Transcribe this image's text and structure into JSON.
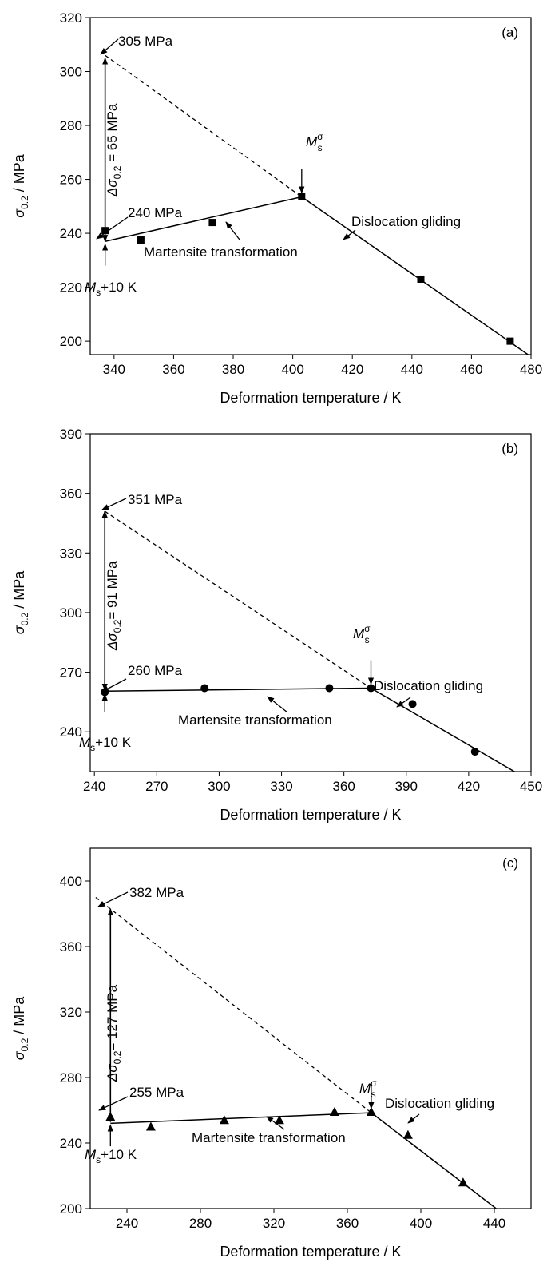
{
  "chart_data": [
    {
      "type": "scatter",
      "panel_label": "(a)",
      "xlabel": "Deformation temperature / K",
      "ylabel": {
        "base": "σ",
        "sub": "0.2",
        "rest": " / MPa"
      },
      "xlim": [
        332,
        480
      ],
      "ylim": [
        195,
        320
      ],
      "xticks": [
        340,
        360,
        380,
        400,
        420,
        440,
        460,
        480
      ],
      "yticks": [
        200,
        220,
        240,
        260,
        280,
        300,
        320
      ],
      "marker": "square",
      "points": [
        {
          "x": 337,
          "y": 241
        },
        {
          "x": 349,
          "y": 237.5
        },
        {
          "x": 373,
          "y": 244
        },
        {
          "x": 403,
          "y": 253.5
        },
        {
          "x": 443,
          "y": 223
        },
        {
          "x": 473,
          "y": 200
        }
      ],
      "martensite_line": [
        [
          337,
          237
        ],
        [
          403,
          253.5
        ]
      ],
      "dislocation_line": [
        [
          403,
          253.5
        ],
        [
          479,
          195
        ]
      ],
      "dashed_line": [
        [
          337,
          306
        ],
        [
          403,
          253.5
        ]
      ],
      "vertical_arrow": {
        "x": 337,
        "y_from": 237,
        "y_to": 305
      },
      "ms10_arrow": {
        "x": 337,
        "y_from": 228,
        "y_to": 236
      },
      "ms_sigma_arrow": {
        "x": 403,
        "y_from": 264,
        "y_to": 255
      },
      "annotations": {
        "top_value": "305 MPa",
        "low_value": "240 MPa",
        "delta": {
          "prefix": "Δσ",
          "sub": "0.2",
          "rest": " = 65 MPa"
        },
        "ms10": {
          "base": "M",
          "sub": "s",
          "rest": "+10 K"
        },
        "ms_sigma": {
          "base": "M",
          "sub": "s",
          "sup": "σ"
        },
        "martensite": "Martensite transformation",
        "dislocation": "Dislocation gliding"
      }
    },
    {
      "type": "scatter",
      "panel_label": "(b)",
      "xlabel": "Deformation temperature / K",
      "ylabel": {
        "base": "σ",
        "sub": "0.2",
        "rest": " / MPa"
      },
      "xlim": [
        238,
        450
      ],
      "ylim": [
        220,
        390
      ],
      "xticks": [
        240,
        270,
        300,
        330,
        360,
        390,
        420,
        450
      ],
      "yticks": [
        240,
        270,
        300,
        330,
        360,
        390
      ],
      "marker": "circle",
      "points": [
        {
          "x": 245,
          "y": 260
        },
        {
          "x": 293,
          "y": 262
        },
        {
          "x": 353,
          "y": 262
        },
        {
          "x": 373,
          "y": 262
        },
        {
          "x": 393,
          "y": 254
        },
        {
          "x": 423,
          "y": 230
        }
      ],
      "martensite_line": [
        [
          245,
          260.5
        ],
        [
          373,
          262
        ]
      ],
      "dislocation_line": [
        [
          373,
          262
        ],
        [
          442,
          220
        ]
      ],
      "dashed_line": [
        [
          245,
          351
        ],
        [
          373,
          262
        ]
      ],
      "vertical_arrow": {
        "x": 245,
        "y_from": 261,
        "y_to": 351
      },
      "ms10_arrow": {
        "x": 245,
        "y_from": 250,
        "y_to": 259
      },
      "ms_sigma_arrow": {
        "x": 373,
        "y_from": 276,
        "y_to": 264
      },
      "annotations": {
        "top_value": "351 MPa",
        "low_value": "260 MPa",
        "delta": {
          "prefix": "Δσ",
          "sub": "0.2",
          "rest": "= 91 MPa"
        },
        "ms10": {
          "base": "M",
          "sub": "s",
          "rest": "+10 K"
        },
        "ms_sigma": {
          "base": "M",
          "sub": "s",
          "sup": "σ"
        },
        "martensite": "Martensite transformation",
        "dislocation": "Dislocation gliding"
      }
    },
    {
      "type": "scatter",
      "panel_label": "(c)",
      "xlabel": "Deformation temperature / K",
      "ylabel": {
        "base": "σ",
        "sub": "0.2",
        "rest": " / MPa"
      },
      "xlim": [
        220,
        460
      ],
      "ylim": [
        200,
        420
      ],
      "xticks": [
        240,
        280,
        320,
        360,
        400,
        440
      ],
      "yticks": [
        200,
        240,
        280,
        320,
        360,
        400
      ],
      "marker": "triangle",
      "points": [
        {
          "x": 231,
          "y": 256
        },
        {
          "x": 253,
          "y": 250
        },
        {
          "x": 293,
          "y": 254
        },
        {
          "x": 323,
          "y": 254
        },
        {
          "x": 353,
          "y": 259
        },
        {
          "x": 373,
          "y": 259
        },
        {
          "x": 393,
          "y": 245
        },
        {
          "x": 423,
          "y": 216
        }
      ],
      "martensite_line": [
        [
          231,
          252
        ],
        [
          373,
          258.5
        ]
      ],
      "dislocation_line": [
        [
          373,
          258.5
        ],
        [
          441,
          200
        ]
      ],
      "dashed_line": [
        [
          223,
          390
        ],
        [
          373,
          258.5
        ]
      ],
      "vertical_arrow": {
        "x": 231,
        "y_from": 253,
        "y_to": 383
      },
      "ms10_arrow": {
        "x": 231,
        "y_from": 238,
        "y_to": 251
      },
      "ms_sigma_arrow": {
        "x": 373,
        "y_from": 277,
        "y_to": 261
      },
      "annotations": {
        "top_value": "382 MPa",
        "low_value": "255 MPa",
        "delta": {
          "prefix": "Δσ",
          "sub": "0.2",
          "rest": "= 127 MPa"
        },
        "ms10": {
          "base": "M",
          "sub": "s",
          "rest": "+10 K"
        },
        "ms_sigma": {
          "base": "M",
          "sub": "s",
          "sup": "σ"
        },
        "martensite": "Martensite transformation",
        "dislocation": "Dislocation gliding"
      }
    }
  ]
}
